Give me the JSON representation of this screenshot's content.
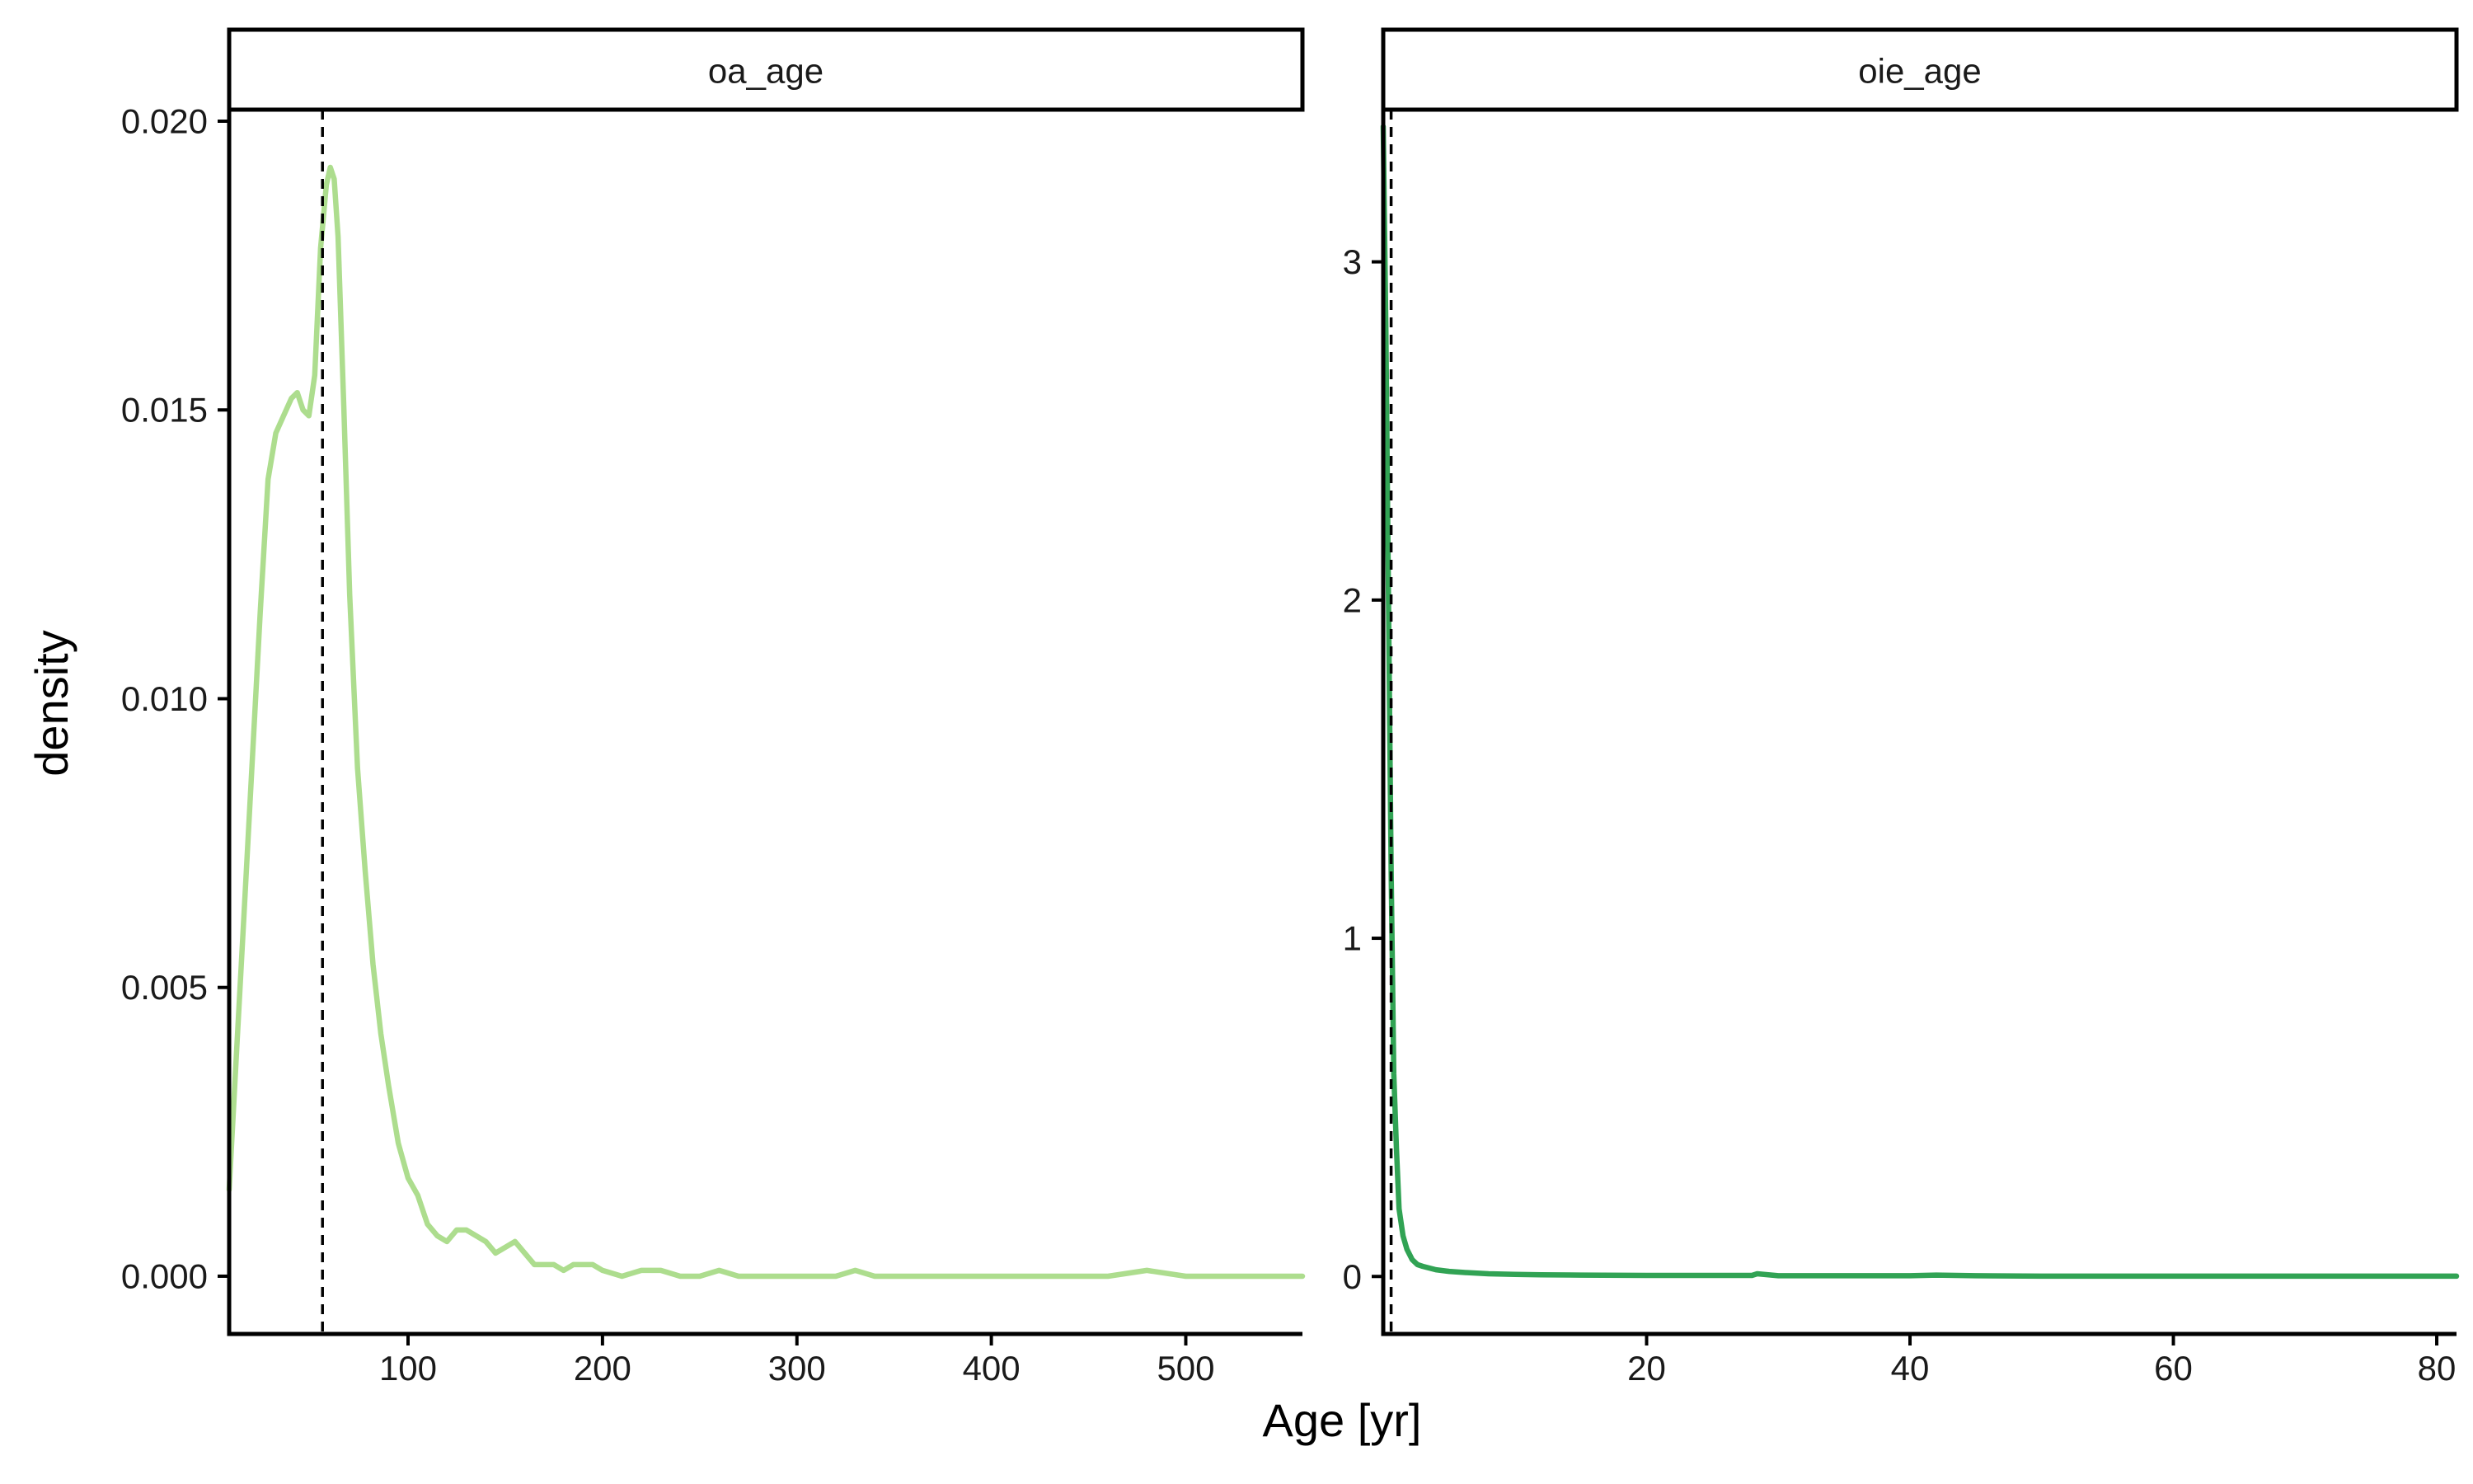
{
  "chart_data": {
    "type": "line",
    "kind": "faceted density plot",
    "xlabel": "Age [yr]",
    "ylabel": "density",
    "facets": [
      {
        "strip_label": "oa_age",
        "color": "#addd8e",
        "xlim": [
          8,
          560
        ],
        "ylim": [
          -0.001,
          0.0202
        ],
        "x_ticks": [
          100,
          200,
          300,
          400,
          500
        ],
        "y_ticks": [
          0.0,
          0.005,
          0.01,
          0.015,
          0.02
        ],
        "y_tick_labels": [
          "0.000",
          "0.005",
          "0.010",
          "0.015",
          "0.020"
        ],
        "reference_line_x": 56,
        "series": [
          {
            "x": [
              8,
              12,
              16,
              20,
              24,
              28,
              32,
              36,
              40,
              43,
              46,
              49,
              52,
              55,
              58,
              60,
              62,
              64,
              67,
              70,
              74,
              78,
              82,
              86,
              90,
              95,
              100,
              105,
              110,
              115,
              120,
              125,
              130,
              135,
              140,
              145,
              150,
              155,
              160,
              165,
              170,
              175,
              180,
              185,
              190,
              195,
              200,
              210,
              220,
              230,
              240,
              250,
              260,
              270,
              280,
              290,
              300,
              310,
              320,
              330,
              340,
              350,
              360,
              370,
              380,
              390,
              400,
              420,
              440,
              460,
              480,
              500,
              520,
              540,
              560
            ],
            "y": [
              0.0015,
              0.004,
              0.0065,
              0.009,
              0.0115,
              0.0138,
              0.0146,
              0.0149,
              0.0152,
              0.0153,
              0.015,
              0.0149,
              0.0156,
              0.0178,
              0.0189,
              0.0192,
              0.019,
              0.018,
              0.015,
              0.0118,
              0.0088,
              0.007,
              0.0054,
              0.0042,
              0.0033,
              0.0023,
              0.0017,
              0.0014,
              0.0009,
              0.0007,
              0.0006,
              0.0008,
              0.0008,
              0.0007,
              0.0006,
              0.0004,
              0.0005,
              0.0006,
              0.0004,
              0.0002,
              0.0002,
              0.0002,
              0.0001,
              0.0002,
              0.0002,
              0.0002,
              0.0001,
              0.0,
              0.0001,
              0.0001,
              0.0,
              0.0,
              0.0001,
              0.0,
              0.0,
              0.0,
              0.0,
              0.0,
              0.0,
              0.0001,
              0.0,
              0.0,
              0.0,
              0.0,
              0.0,
              0.0,
              0.0,
              0.0,
              0.0,
              0.0,
              0.0001,
              0.0,
              0.0,
              0.0,
              0.0
            ]
          }
        ]
      },
      {
        "strip_label": "oie_age",
        "color": "#31a354",
        "xlim": [
          0,
          81.5
        ],
        "ylim": [
          -0.17,
          3.45
        ],
        "x_ticks": [
          20,
          40,
          60,
          80
        ],
        "y_ticks": [
          0,
          1,
          2,
          3
        ],
        "y_tick_labels": [
          "0",
          "1",
          "2",
          "3"
        ],
        "reference_line_x": 0.6,
        "series": [
          {
            "x": [
              0,
              0.2,
              0.4,
              0.6,
              0.8,
              1.0,
              1.2,
              1.5,
              1.8,
              2.2,
              2.6,
              3,
              4,
              5,
              6,
              8,
              10,
              12,
              15,
              20,
              25,
              28,
              28.4,
              30,
              35,
              40,
              42,
              45,
              50,
              55,
              60,
              65,
              70,
              75,
              80,
              81.5
            ],
            "y": [
              3.4,
              2.8,
              2.0,
              1.2,
              0.6,
              0.38,
              0.2,
              0.12,
              0.08,
              0.05,
              0.035,
              0.03,
              0.02,
              0.015,
              0.012,
              0.008,
              0.006,
              0.005,
              0.004,
              0.003,
              0.003,
              0.003,
              0.008,
              0.002,
              0.002,
              0.002,
              0.004,
              0.002,
              0.001,
              0.001,
              0.001,
              0.001,
              0.001,
              0.001,
              0.001,
              0.001
            ]
          }
        ]
      }
    ]
  }
}
